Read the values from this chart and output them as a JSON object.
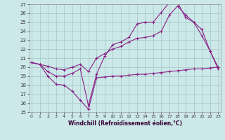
{
  "background_color": "#cce8e8",
  "grid_color": "#aacccc",
  "line_color": "#882288",
  "xlabel": "Windchill (Refroidissement éolien,°C)",
  "ylim": [
    15,
    27
  ],
  "xlim": [
    -0.3,
    23.3
  ],
  "yticks": [
    15,
    16,
    17,
    18,
    19,
    20,
    21,
    22,
    23,
    24,
    25,
    26,
    27
  ],
  "xticks": [
    0,
    1,
    2,
    3,
    4,
    5,
    6,
    7,
    8,
    9,
    10,
    11,
    12,
    13,
    14,
    15,
    16,
    17,
    18,
    19,
    20,
    21,
    22,
    23
  ],
  "line1_x": [
    0,
    1,
    2,
    3,
    4,
    5,
    6,
    7,
    8,
    9,
    10,
    11,
    12,
    13,
    14,
    15,
    16,
    17,
    18,
    19,
    20,
    21,
    22,
    23
  ],
  "line1_y": [
    20.5,
    20.3,
    19.0,
    18.1,
    18.0,
    17.3,
    16.3,
    15.3,
    18.8,
    18.9,
    19.0,
    19.0,
    19.1,
    19.2,
    19.2,
    19.3,
    19.4,
    19.5,
    19.6,
    19.7,
    19.8,
    19.8,
    19.9,
    20.0
  ],
  "line2_x": [
    0,
    1,
    2,
    3,
    4,
    5,
    6,
    7,
    8,
    9,
    10,
    11,
    12,
    13,
    14,
    15,
    16,
    17,
    18,
    19,
    20,
    21,
    22,
    23
  ],
  "line2_y": [
    20.5,
    20.3,
    20.1,
    19.8,
    19.7,
    20.0,
    20.3,
    19.5,
    21.0,
    21.5,
    22.0,
    22.3,
    22.8,
    23.2,
    23.3,
    23.5,
    24.0,
    25.8,
    26.8,
    25.8,
    25.0,
    24.2,
    21.8,
    20.0
  ],
  "line3_x": [
    0,
    1,
    2,
    3,
    4,
    5,
    6,
    7,
    8,
    9,
    10,
    11,
    12,
    13,
    14,
    15,
    16,
    17,
    18,
    19,
    20,
    21,
    22,
    23
  ],
  "line3_y": [
    20.5,
    20.3,
    19.5,
    19.0,
    19.0,
    19.3,
    19.8,
    15.7,
    19.2,
    21.2,
    22.5,
    22.8,
    23.3,
    24.8,
    25.0,
    25.0,
    26.1,
    27.2,
    27.2,
    25.5,
    25.0,
    23.5,
    21.8,
    19.8
  ]
}
